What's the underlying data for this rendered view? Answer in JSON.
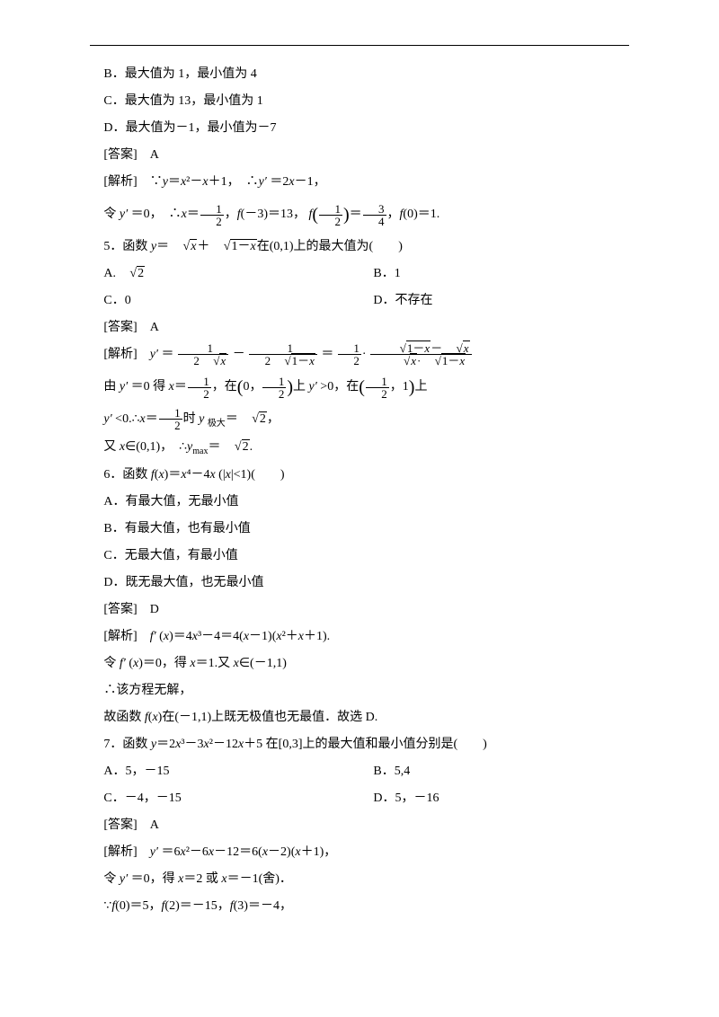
{
  "page": {
    "background": "#ffffff",
    "text_color": "#000000",
    "rule_color": "#000000",
    "font_body": "SimSun",
    "font_math": "Times New Roman",
    "fontsize_body_pt": 10.5,
    "fontsize_fraction_pt": 10
  },
  "q4": {
    "opt_b": "B．最大值为 1，最小值为 4",
    "opt_c": "C．最大值为 13，最小值为 1",
    "opt_d": "D．最大值为－1，最小值为－7",
    "answer_label": "[答案]　A",
    "analysis_prefix": "[解析]　∵",
    "expr1_a": "y",
    "expr1_b": "＝",
    "expr1_c": "x",
    "expr1_d": "²－",
    "expr1_e": "x",
    "expr1_f": "＋1，　∴",
    "expr1_g": "y′",
    "expr1_h": " ＝2",
    "expr1_i": "x",
    "expr1_j": "－1，",
    "line2_a": "令 ",
    "line2_b": "y′",
    "line2_c": " ＝0，　∴",
    "line2_d": "x",
    "line2_e": "＝",
    "frac_half_num": "1",
    "frac_half_den": "2",
    "line2_f": "，",
    "line2_g": "f",
    "line2_h": "(－3)＝13，",
    "line2_i": "f",
    "frac_f_arg_num": "1",
    "frac_f_arg_den": "2",
    "line2_j": "＝",
    "frac_34_num": "3",
    "frac_34_den": "4",
    "line2_k": "，",
    "line2_l": "f",
    "line2_m": "(0)＝1."
  },
  "q5": {
    "stem_a": "5．函数 ",
    "stem_b": "y",
    "stem_c": "＝",
    "sqrt_x": "x",
    "stem_plus": "＋",
    "sqrt_1mx": "1－x",
    "stem_d": "在(0,1)上的最大值为(　　)",
    "opt_a_pre": "A.",
    "opt_a_sqrt": "2",
    "opt_b": "B．1",
    "opt_c": "C．0",
    "opt_d": "D．不存在",
    "answer_label": "[答案]　A",
    "ana_prefix": "[解析]　",
    "ana_y": "y′",
    "ana_eq": " ＝",
    "d1_num": "1",
    "d1_den_a": "2",
    "d1_den_sqrt": "x",
    "ana_minus": "－",
    "d2_num": "1",
    "d2_den_a": "2",
    "d2_den_sqrt": "1－x",
    "ana_eq2": "＝",
    "d3_num": "1",
    "d3_den": "2",
    "ana_dot": "·",
    "d4_num_sqrt1": "1－x",
    "d4_num_minus": "－",
    "d4_num_sqrt2": "x",
    "d4_den_sqrt1": "x",
    "d4_den_dot": "·",
    "d4_den_sqrt2": "1－x",
    "l2_a": "由 ",
    "l2_b": "y′",
    "l2_c": " ＝0 得 ",
    "l2_d": "x",
    "l2_e": "＝",
    "l2_in": "，在",
    "l2_on": "上 ",
    "l2_ypos": "y′",
    "l2_gt0": " >0，在",
    "int1_a": "0，",
    "int1_b_num": "1",
    "int1_b_den": "2",
    "int2_a_num": "1",
    "int2_a_den": "2",
    "int2_b": "，1",
    "l2_end": "上",
    "l3_a": "y′",
    "l3_b": " <0.∴",
    "l3_c": "x",
    "l3_d": "＝",
    "l3_e": "时 ",
    "l3_f": "y ",
    "l3_g": "极大",
    "l3_h": "＝",
    "l3_sqrt": "2",
    "l3_i": "，",
    "l4_a": "又 ",
    "l4_b": "x",
    "l4_c": "∈(0,1)，　∴",
    "l4_d": "y",
    "l4_sub": "max",
    "l4_e": "＝",
    "l4_sqrt": "2",
    "l4_f": "."
  },
  "q6": {
    "stem_a": "6．函数 ",
    "stem_b": "f",
    "stem_c": "(",
    "stem_d": "x",
    "stem_e": ")＝",
    "stem_f": "x",
    "stem_g": "⁴－4",
    "stem_h": "x",
    "stem_i": " (|",
    "stem_j": "x",
    "stem_k": "|<1)(　　)",
    "opt_a": "A．有最大值，无最小值",
    "opt_b": "B．有最大值，也有最小值",
    "opt_c": "C．无最大值，有最小值",
    "opt_d": "D．既无最大值，也无最小值",
    "answer_label": "[答案]　D",
    "ana_prefix": "[解析]　",
    "ana_a": "f′",
    "ana_b": " (",
    "ana_c": "x",
    "ana_d": ")＝4",
    "ana_e": "x",
    "ana_f": "³－4＝4(",
    "ana_g": "x",
    "ana_h": "－1)(",
    "ana_i": "x",
    "ana_j": "²＋",
    "ana_k": "x",
    "ana_l": "＋1).",
    "l2_a": "令 ",
    "l2_b": "f′",
    "l2_c": " (",
    "l2_d": "x",
    "l2_e": ")＝0，得 ",
    "l2_f": "x",
    "l2_g": "＝1.又 ",
    "l2_h": "x",
    "l2_i": "∈(－1,1)",
    "l3": "∴该方程无解，",
    "l4_a": "故函数 ",
    "l4_b": "f",
    "l4_c": "(",
    "l4_d": "x",
    "l4_e": ")在(－1,1)上既无极值也无最值．故选 D."
  },
  "q7": {
    "stem_a": "7．函数 ",
    "stem_b": "y",
    "stem_c": "＝2",
    "stem_d": "x",
    "stem_e": "³－3",
    "stem_f": "x",
    "stem_g": "²－12",
    "stem_h": "x",
    "stem_i": "＋5 在[0,3]上的最大值和最小值分别是(　　)",
    "opt_a": "A．5，－15",
    "opt_b": "B．5,4",
    "opt_c": "C．－4，－15",
    "opt_d": "D．5，－16",
    "answer_label": "[答案]　A",
    "ana_prefix": "[解析]　",
    "ana_a": "y′",
    "ana_b": " ＝6",
    "ana_c": "x",
    "ana_d": "²－6",
    "ana_e": "x",
    "ana_f": "－12＝6(",
    "ana_g": "x",
    "ana_h": "－2)(",
    "ana_i": "x",
    "ana_j": "＋1)，",
    "l2_a": "令 ",
    "l2_b": "y′",
    "l2_c": " ＝0，得 ",
    "l2_d": "x",
    "l2_e": "＝2 或 ",
    "l2_f": "x",
    "l2_g": "＝－1(舍)．",
    "l3_a": "∵",
    "l3_b": "f",
    "l3_c": "(0)＝5，",
    "l3_d": "f",
    "l3_e": "(2)＝－15，",
    "l3_f": "f",
    "l3_g": "(3)＝－4，"
  }
}
